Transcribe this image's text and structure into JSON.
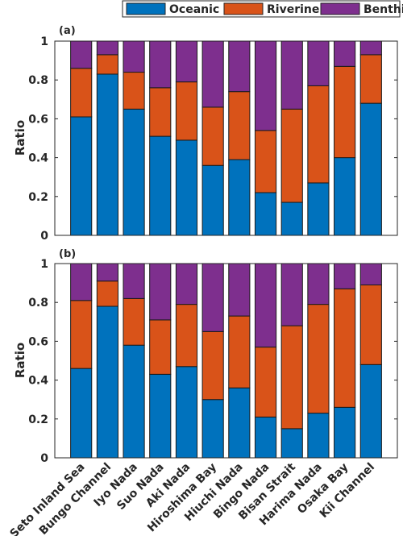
{
  "legend": {
    "entries": [
      {
        "label": "Oceanic",
        "color": "#0072bd"
      },
      {
        "label": "Riverine",
        "color": "#d95319"
      },
      {
        "label": "Benthic",
        "color": "#7e2f8e"
      }
    ]
  },
  "chart_data": [
    {
      "type": "bar",
      "stacked": true,
      "panel_label": "(a)",
      "categories": [
        "Seto Inland Sea",
        "Bungo Channel",
        "Iyo Nada",
        "Suo Nada",
        "Aki Nada",
        "Hiroshima Bay",
        "Hiuchi Nada",
        "Bingo Nada",
        "Bisan Strait",
        "Harima Nada",
        "Osaka Bay",
        "Kii Channel"
      ],
      "series": [
        {
          "name": "Oceanic",
          "color": "#0072bd",
          "values": [
            0.61,
            0.83,
            0.65,
            0.51,
            0.49,
            0.36,
            0.39,
            0.22,
            0.17,
            0.27,
            0.4,
            0.68
          ]
        },
        {
          "name": "Riverine",
          "color": "#d95319",
          "values": [
            0.25,
            0.1,
            0.19,
            0.25,
            0.3,
            0.3,
            0.35,
            0.32,
            0.48,
            0.5,
            0.47,
            0.25
          ]
        },
        {
          "name": "Benthic",
          "color": "#7e2f8e",
          "values": [
            0.14,
            0.07,
            0.16,
            0.24,
            0.21,
            0.34,
            0.26,
            0.46,
            0.35,
            0.23,
            0.13,
            0.07
          ]
        }
      ],
      "ylabel": "Ratio",
      "ylim": [
        0,
        1
      ],
      "yticks": [
        "0",
        "0.2",
        "0.4",
        "0.6",
        "0.8",
        "1"
      ],
      "show_xticklabels": false
    },
    {
      "type": "bar",
      "stacked": true,
      "panel_label": "(b)",
      "categories": [
        "Seto Inland Sea",
        "Bungo Channel",
        "Iyo Nada",
        "Suo Nada",
        "Aki Nada",
        "Hiroshima Bay",
        "Hiuchi Nada",
        "Bingo Nada",
        "Bisan Strait",
        "Harima Nada",
        "Osaka Bay",
        "Kii Channel"
      ],
      "series": [
        {
          "name": "Oceanic",
          "color": "#0072bd",
          "values": [
            0.46,
            0.78,
            0.58,
            0.43,
            0.47,
            0.3,
            0.36,
            0.21,
            0.15,
            0.23,
            0.26,
            0.48
          ]
        },
        {
          "name": "Riverine",
          "color": "#d95319",
          "values": [
            0.35,
            0.13,
            0.24,
            0.28,
            0.32,
            0.35,
            0.37,
            0.36,
            0.53,
            0.56,
            0.61,
            0.41
          ]
        },
        {
          "name": "Benthic",
          "color": "#7e2f8e",
          "values": [
            0.19,
            0.09,
            0.18,
            0.29,
            0.21,
            0.35,
            0.27,
            0.43,
            0.32,
            0.21,
            0.13,
            0.11
          ]
        }
      ],
      "ylabel": "Ratio",
      "ylim": [
        0,
        1
      ],
      "yticks": [
        "0",
        "0.2",
        "0.4",
        "0.6",
        "0.8",
        "1"
      ],
      "show_xticklabels": true
    }
  ]
}
